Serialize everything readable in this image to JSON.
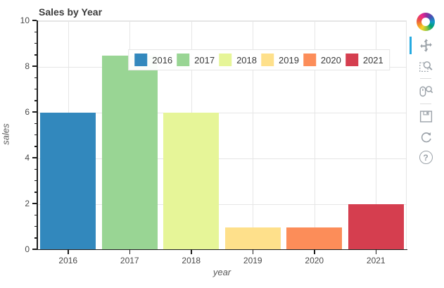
{
  "chart_data": {
    "type": "bar",
    "title": "Sales by Year",
    "categories": [
      "2016",
      "2017",
      "2018",
      "2019",
      "2020",
      "2021"
    ],
    "values": [
      6,
      8.5,
      6,
      1,
      1,
      2
    ],
    "colors": [
      "#3288bd",
      "#99d594",
      "#e6f598",
      "#fee08b",
      "#fc8d59",
      "#d53e4f"
    ],
    "xlabel": "year",
    "ylabel": "sales",
    "ylim": [
      0,
      10
    ],
    "yticks": [
      0,
      2,
      4,
      6,
      8,
      10
    ],
    "minor_tick_step": 0.5,
    "bar_width_fraction": 0.9,
    "grid": "on",
    "legend_position": "top-center",
    "legend_entries": [
      "2016",
      "2017",
      "2018",
      "2019",
      "2020",
      "2021"
    ]
  },
  "toolbar": {
    "logo": "bokeh-logo",
    "active_tool": "pan",
    "active_indicator_color": "#26aae1",
    "icon_color": "#9aa1a8",
    "help_glyph": "?",
    "tools": [
      "pan",
      "box-zoom",
      "wheel-zoom",
      "save",
      "reset",
      "help"
    ]
  }
}
